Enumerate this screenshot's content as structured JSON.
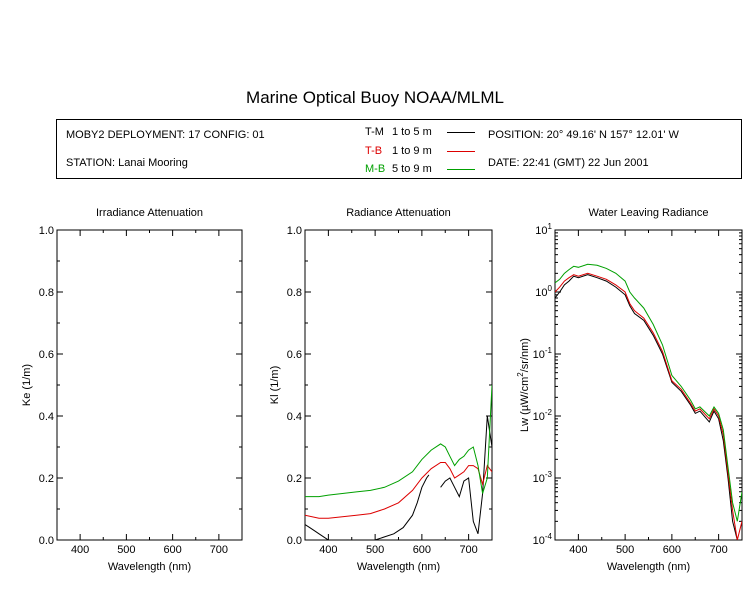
{
  "title": "Marine Optical Buoy NOAA/MLML",
  "info": {
    "deployment": "MOBY2 DEPLOYMENT: 17 CONFIG: 01",
    "station": "STATION: Lanai Mooring",
    "position": "POSITION: 20° 49.16' N   157° 12.01' W",
    "date": "DATE: 22:41 (GMT) 22 Jun 2001"
  },
  "legend": [
    {
      "code": "T-M",
      "range": "1 to 5  m",
      "color": "#000000"
    },
    {
      "code": "T-B",
      "range": "1 to 9  m",
      "color": "#dd0000"
    },
    {
      "code": "M-B",
      "range": "5 to 9  m",
      "color": "#00a000"
    }
  ],
  "chart_data": [
    {
      "type": "line",
      "title": "Irradiance Attenuation",
      "xlabel": "Wavelength (nm)",
      "ylabel": "Ke  (1/m)",
      "xlim": [
        350,
        750
      ],
      "ylim": [
        0,
        1.0
      ],
      "xticks": [
        "400",
        "500",
        "600",
        "700"
      ],
      "yticks": [
        "0.0",
        "0.2",
        "0.4",
        "0.6",
        "0.8",
        "1.0"
      ],
      "series": []
    },
    {
      "type": "line",
      "title": "Radiance Attenuation",
      "xlabel": "Wavelength (nm)",
      "ylabel": "Kl  (1/m)",
      "xlim": [
        350,
        750
      ],
      "ylim": [
        0,
        1.0
      ],
      "xticks": [
        "400",
        "500",
        "600",
        "700"
      ],
      "yticks": [
        "0.0",
        "0.2",
        "0.4",
        "0.6",
        "0.8",
        "1.0"
      ],
      "series": [
        {
          "name": "T-M",
          "color": "#000000",
          "x": [
            350,
            360,
            370,
            380,
            390,
            400,
            420,
            450,
            480,
            500,
            520,
            540,
            560,
            580,
            590,
            600,
            610,
            615,
            620,
            640,
            650,
            660,
            670,
            680,
            690,
            700,
            710,
            720,
            730,
            740,
            750
          ],
          "y": [
            0.05,
            0.04,
            0.03,
            0.02,
            0.01,
            0.0,
            0.0,
            0.0,
            0.0,
            0.0,
            0.01,
            0.02,
            0.04,
            0.08,
            0.12,
            0.17,
            0.2,
            0.21,
            null,
            0.17,
            0.19,
            0.2,
            0.17,
            0.14,
            0.19,
            0.2,
            0.06,
            0.02,
            0.15,
            0.4,
            0.3
          ]
        },
        {
          "name": "T-B",
          "color": "#dd0000",
          "x": [
            350,
            380,
            400,
            430,
            460,
            490,
            520,
            550,
            580,
            600,
            620,
            640,
            650,
            660,
            670,
            680,
            690,
            700,
            710,
            720,
            730,
            740,
            750
          ],
          "y": [
            0.08,
            0.07,
            0.07,
            0.075,
            0.08,
            0.085,
            0.1,
            0.12,
            0.16,
            0.2,
            0.23,
            0.25,
            0.25,
            0.23,
            0.2,
            0.21,
            0.22,
            0.24,
            0.24,
            0.23,
            0.18,
            0.24,
            0.22
          ]
        },
        {
          "name": "M-B",
          "color": "#00a000",
          "x": [
            350,
            380,
            400,
            430,
            460,
            490,
            520,
            550,
            580,
            600,
            620,
            640,
            650,
            660,
            670,
            680,
            690,
            700,
            710,
            720,
            730,
            740,
            750
          ],
          "y": [
            0.14,
            0.14,
            0.145,
            0.15,
            0.155,
            0.16,
            0.17,
            0.19,
            0.22,
            0.26,
            0.29,
            0.31,
            0.3,
            0.27,
            0.24,
            0.26,
            0.27,
            0.29,
            0.3,
            0.24,
            0.15,
            0.2,
            0.5
          ]
        }
      ]
    },
    {
      "type": "line",
      "title": "Water Leaving Radiance",
      "xlabel": "Wavelength (nm)",
      "ylabel": "Lw  (µW/cm²/sr/nm)",
      "ylabel_parts": {
        "pre": "Lw  (",
        "mu": "µ",
        "mid": "W/cm",
        "sup": "2",
        "post": "/sr/nm)"
      },
      "yscale": "log",
      "xlim": [
        350,
        750
      ],
      "ylim": [
        0.0001,
        10
      ],
      "xticks": [
        "400",
        "500",
        "600",
        "700"
      ],
      "yticks": [
        {
          "base": "10",
          "exp": "1"
        },
        {
          "base": "10",
          "exp": "0"
        },
        {
          "base": "10",
          "exp": "-1"
        },
        {
          "base": "10",
          "exp": "-2"
        },
        {
          "base": "10",
          "exp": "-3"
        },
        {
          "base": "10",
          "exp": "-4"
        }
      ],
      "series": [
        {
          "name": "T-M",
          "color": "#000000",
          "x": [
            350,
            360,
            370,
            380,
            390,
            400,
            420,
            440,
            460,
            480,
            500,
            510,
            520,
            540,
            560,
            580,
            600,
            620,
            640,
            650,
            660,
            680,
            690,
            700,
            710,
            720,
            730,
            740,
            750
          ],
          "y": [
            0.8,
            1.0,
            1.3,
            1.5,
            1.8,
            1.7,
            1.9,
            1.7,
            1.5,
            1.2,
            0.9,
            0.6,
            0.45,
            0.35,
            0.2,
            0.1,
            0.035,
            0.025,
            0.015,
            0.011,
            0.012,
            0.008,
            0.012,
            0.009,
            0.004,
            0.001,
            0.0002,
            0.0001,
            0.0001
          ]
        },
        {
          "name": "T-B",
          "color": "#dd0000",
          "x": [
            350,
            360,
            370,
            380,
            390,
            400,
            420,
            440,
            460,
            480,
            500,
            510,
            520,
            540,
            560,
            580,
            600,
            620,
            640,
            650,
            660,
            680,
            690,
            700,
            710,
            720,
            730,
            740,
            750
          ],
          "y": [
            1.0,
            1.2,
            1.5,
            1.7,
            1.9,
            1.8,
            2.0,
            1.8,
            1.6,
            1.3,
            1.0,
            0.65,
            0.5,
            0.38,
            0.22,
            0.11,
            0.037,
            0.027,
            0.016,
            0.012,
            0.013,
            0.009,
            0.013,
            0.01,
            0.005,
            0.0012,
            0.0003,
            0.0001,
            0.0002
          ]
        },
        {
          "name": "M-B",
          "color": "#00a000",
          "x": [
            350,
            360,
            370,
            380,
            390,
            400,
            420,
            440,
            460,
            480,
            500,
            510,
            520,
            540,
            560,
            580,
            600,
            620,
            640,
            650,
            660,
            680,
            690,
            700,
            710,
            720,
            730,
            740,
            750
          ],
          "y": [
            1.4,
            1.6,
            2.0,
            2.3,
            2.6,
            2.5,
            2.8,
            2.7,
            2.4,
            2.0,
            1.5,
            1.0,
            0.8,
            0.55,
            0.3,
            0.14,
            0.045,
            0.03,
            0.018,
            0.013,
            0.014,
            0.01,
            0.014,
            0.011,
            0.006,
            0.0015,
            0.0004,
            0.0002,
            0.0006
          ]
        }
      ]
    }
  ]
}
